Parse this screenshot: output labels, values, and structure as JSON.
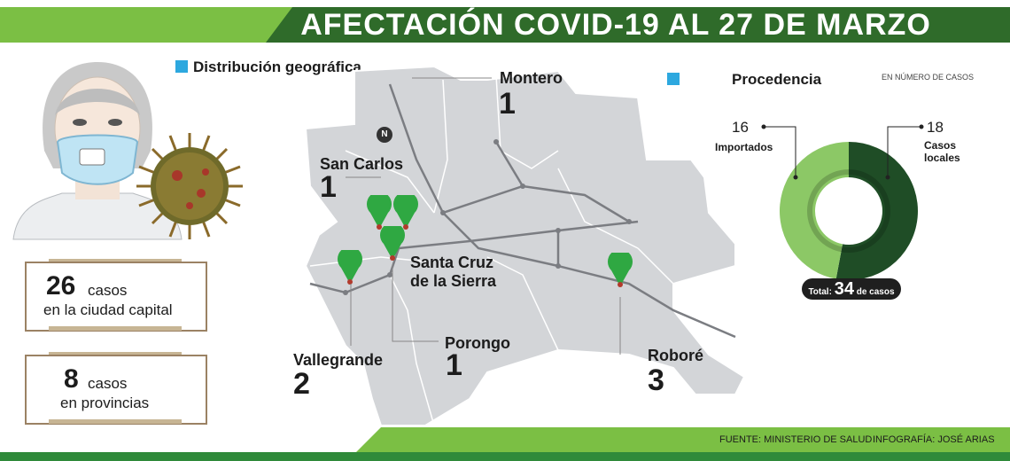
{
  "header": {
    "title": "AFECTACIÓN COVID-19 AL 27 DE MARZO"
  },
  "sections": {
    "geo": "Distribución geográfica",
    "origin": "Procedencia",
    "units": "EN NÚMERO DE CASOS"
  },
  "summary": [
    {
      "number": "26",
      "word": "casos",
      "line2": "en la ciudad capital"
    },
    {
      "number": "8",
      "word": "casos",
      "line2": "en provincias"
    }
  ],
  "map": {
    "north": "N",
    "capital": "Santa Cruz de la Sierra",
    "capital_line1": "Santa Cruz",
    "capital_line2": "de la Sierra",
    "places": [
      {
        "name": "Montero",
        "cases": "1"
      },
      {
        "name": "San Carlos",
        "cases": "1"
      },
      {
        "name": "Porongo",
        "cases": "1"
      },
      {
        "name": "Vallegrande",
        "cases": "2"
      },
      {
        "name": "Roboré",
        "cases": "3"
      }
    ]
  },
  "chart_data": {
    "type": "pie",
    "series": [
      {
        "name": "Importados",
        "value": 16,
        "color": "#8cc866"
      },
      {
        "name": "Casos locales",
        "value": 18,
        "color": "#1f4d26"
      }
    ],
    "labels": {
      "imported_label": "Importados",
      "local_line1": "Casos",
      "local_line2": "locales"
    },
    "total_label": "Total:",
    "total_value": "34",
    "total_suffix": "de casos"
  },
  "footer": {
    "source": "FUENTE: MINISTERIO DE SALUD",
    "credit": "INFOGRAFÍA: JOSÉ ARIAS"
  },
  "colors": {
    "accent_green": "#7bbf44",
    "dark_green": "#2f6b2a",
    "marker": "#2fa842",
    "map_gray": "#d3d5d8"
  }
}
